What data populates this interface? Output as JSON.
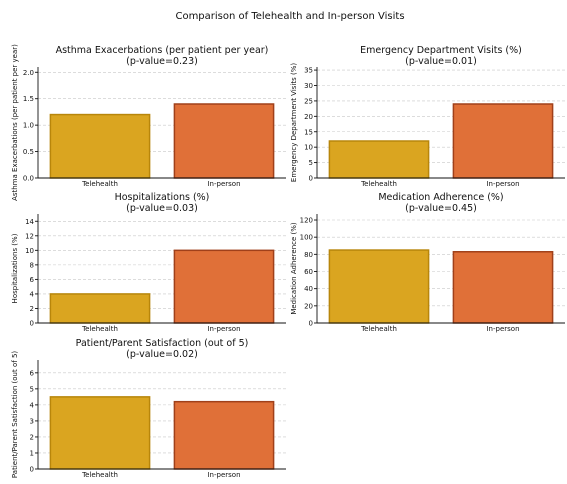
{
  "figure_title": "Comparison of Telehealth and In-person Visits",
  "colors": {
    "telehealth_fill": "#DAA520",
    "telehealth_edge": "#B8860B",
    "inperson_fill": "#E07038",
    "inperson_edge": "#A0401A"
  },
  "chart_data": [
    {
      "type": "bar",
      "title": "Asthma Exacerbations (per patient per year)",
      "subtitle": "(p-value=0.23)",
      "ylabel": "Asthma Exacerbations (per patient per year)",
      "categories": [
        "Telehealth",
        "In-person"
      ],
      "values": [
        1.2,
        1.4
      ],
      "ylim": [
        0,
        2.1
      ],
      "yticks": [
        0.0,
        0.5,
        1.0,
        1.5,
        2.0
      ],
      "ytick_labels": [
        "0.0",
        "0.5",
        "1.0",
        "1.5",
        "2.0"
      ],
      "grid": true
    },
    {
      "type": "bar",
      "title": "Emergency Department Visits (%)",
      "subtitle": "(p-value=0.01)",
      "ylabel": "Emergency Department Visits (%)",
      "categories": [
        "Telehealth",
        "In-person"
      ],
      "values": [
        12,
        24
      ],
      "ylim": [
        0,
        36
      ],
      "yticks": [
        0,
        5,
        10,
        15,
        20,
        25,
        30,
        35
      ],
      "ytick_labels": [
        "0",
        "5",
        "10",
        "15",
        "20",
        "25",
        "30",
        "35"
      ],
      "grid": true
    },
    {
      "type": "bar",
      "title": "Hospitalizations (%)",
      "subtitle": "(p-value=0.03)",
      "ylabel": "Hospitalizations (%)",
      "categories": [
        "Telehealth",
        "In-person"
      ],
      "values": [
        4,
        10
      ],
      "ylim": [
        0,
        15
      ],
      "yticks": [
        0,
        2,
        4,
        6,
        8,
        10,
        12,
        14
      ],
      "ytick_labels": [
        "0",
        "2",
        "4",
        "6",
        "8",
        "10",
        "12",
        "14"
      ],
      "grid": true
    },
    {
      "type": "bar",
      "title": "Medication Adherence (%)",
      "subtitle": "(p-value=0.45)",
      "ylabel": "Medication Adherence (%)",
      "categories": [
        "Telehealth",
        "In-person"
      ],
      "values": [
        85,
        83
      ],
      "ylim": [
        0,
        127
      ],
      "yticks": [
        0,
        20,
        40,
        60,
        80,
        100,
        120
      ],
      "ytick_labels": [
        "0",
        "20",
        "40",
        "60",
        "80",
        "100",
        "120"
      ],
      "grid": true
    },
    {
      "type": "bar",
      "title": "Patient/Parent Satisfaction (out of 5)",
      "subtitle": "(p-value=0.02)",
      "ylabel": "Patient/Parent Satisfaction (out of 5)",
      "categories": [
        "Telehealth",
        "In-person"
      ],
      "values": [
        4.5,
        4.2
      ],
      "ylim": [
        0,
        6.8
      ],
      "yticks": [
        0,
        1,
        2,
        3,
        4,
        5,
        6
      ],
      "ytick_labels": [
        "0",
        "1",
        "2",
        "3",
        "4",
        "5",
        "6"
      ],
      "grid": true
    }
  ]
}
